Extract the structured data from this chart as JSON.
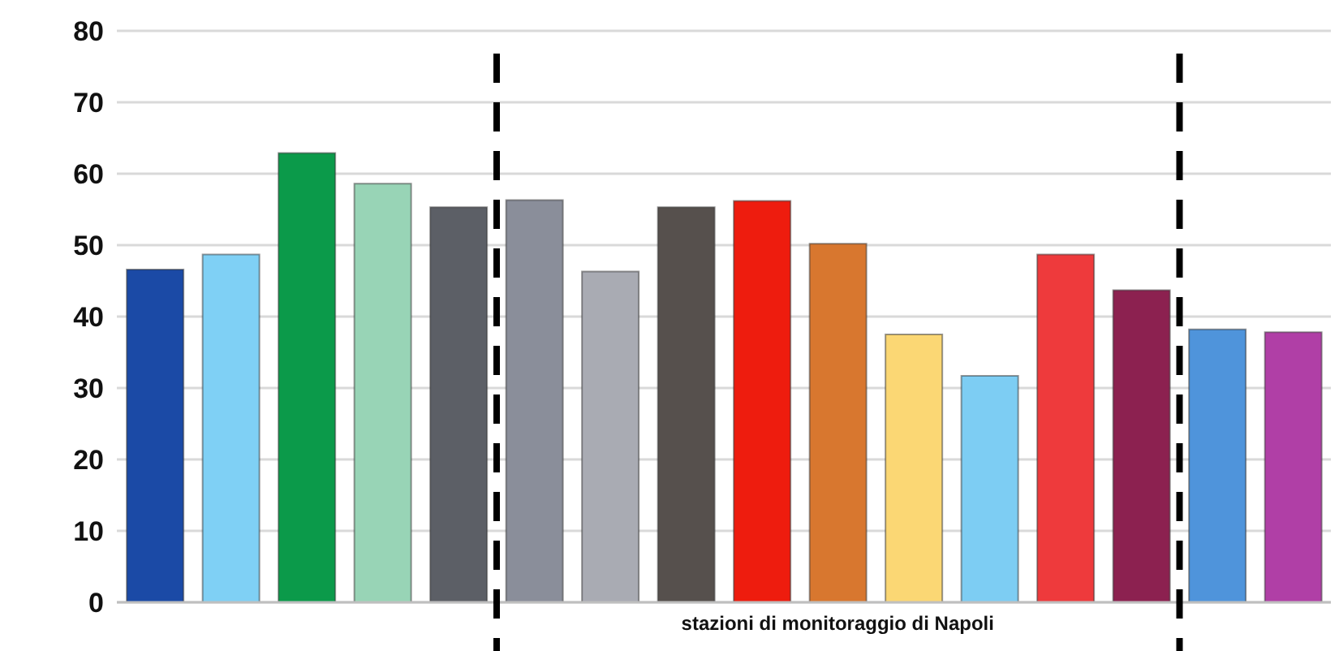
{
  "chart_data": {
    "type": "bar",
    "categories": [
      null,
      null,
      null,
      null,
      null,
      null,
      null,
      null,
      null,
      null,
      null,
      null,
      null,
      null,
      null,
      null
    ],
    "values": [
      46.6,
      48.7,
      62.9,
      58.6,
      55.3,
      56.3,
      46.3,
      55.3,
      56.2,
      50.2,
      37.5,
      31.7,
      48.7,
      43.7,
      38.2,
      37.8
    ],
    "colors": [
      "#1b4aa6",
      "#7fd0f5",
      "#0b9a4a",
      "#98d4b6",
      "#5c5f66",
      "#8a8e9a",
      "#a9abb3",
      "#56504d",
      "#ee1c0e",
      "#d8772f",
      "#fbd774",
      "#7dcdf3",
      "#ee3a3c",
      "#8c2150",
      "#4f94db",
      "#b03fa6"
    ],
    "ylim": [
      0,
      80
    ],
    "yticks": [
      0,
      10,
      20,
      30,
      40,
      50,
      60,
      70,
      80
    ],
    "grid": "y",
    "tick_labels": "y",
    "annotations": [
      "stazioni di monitoraggio di Napoli"
    ]
  }
}
